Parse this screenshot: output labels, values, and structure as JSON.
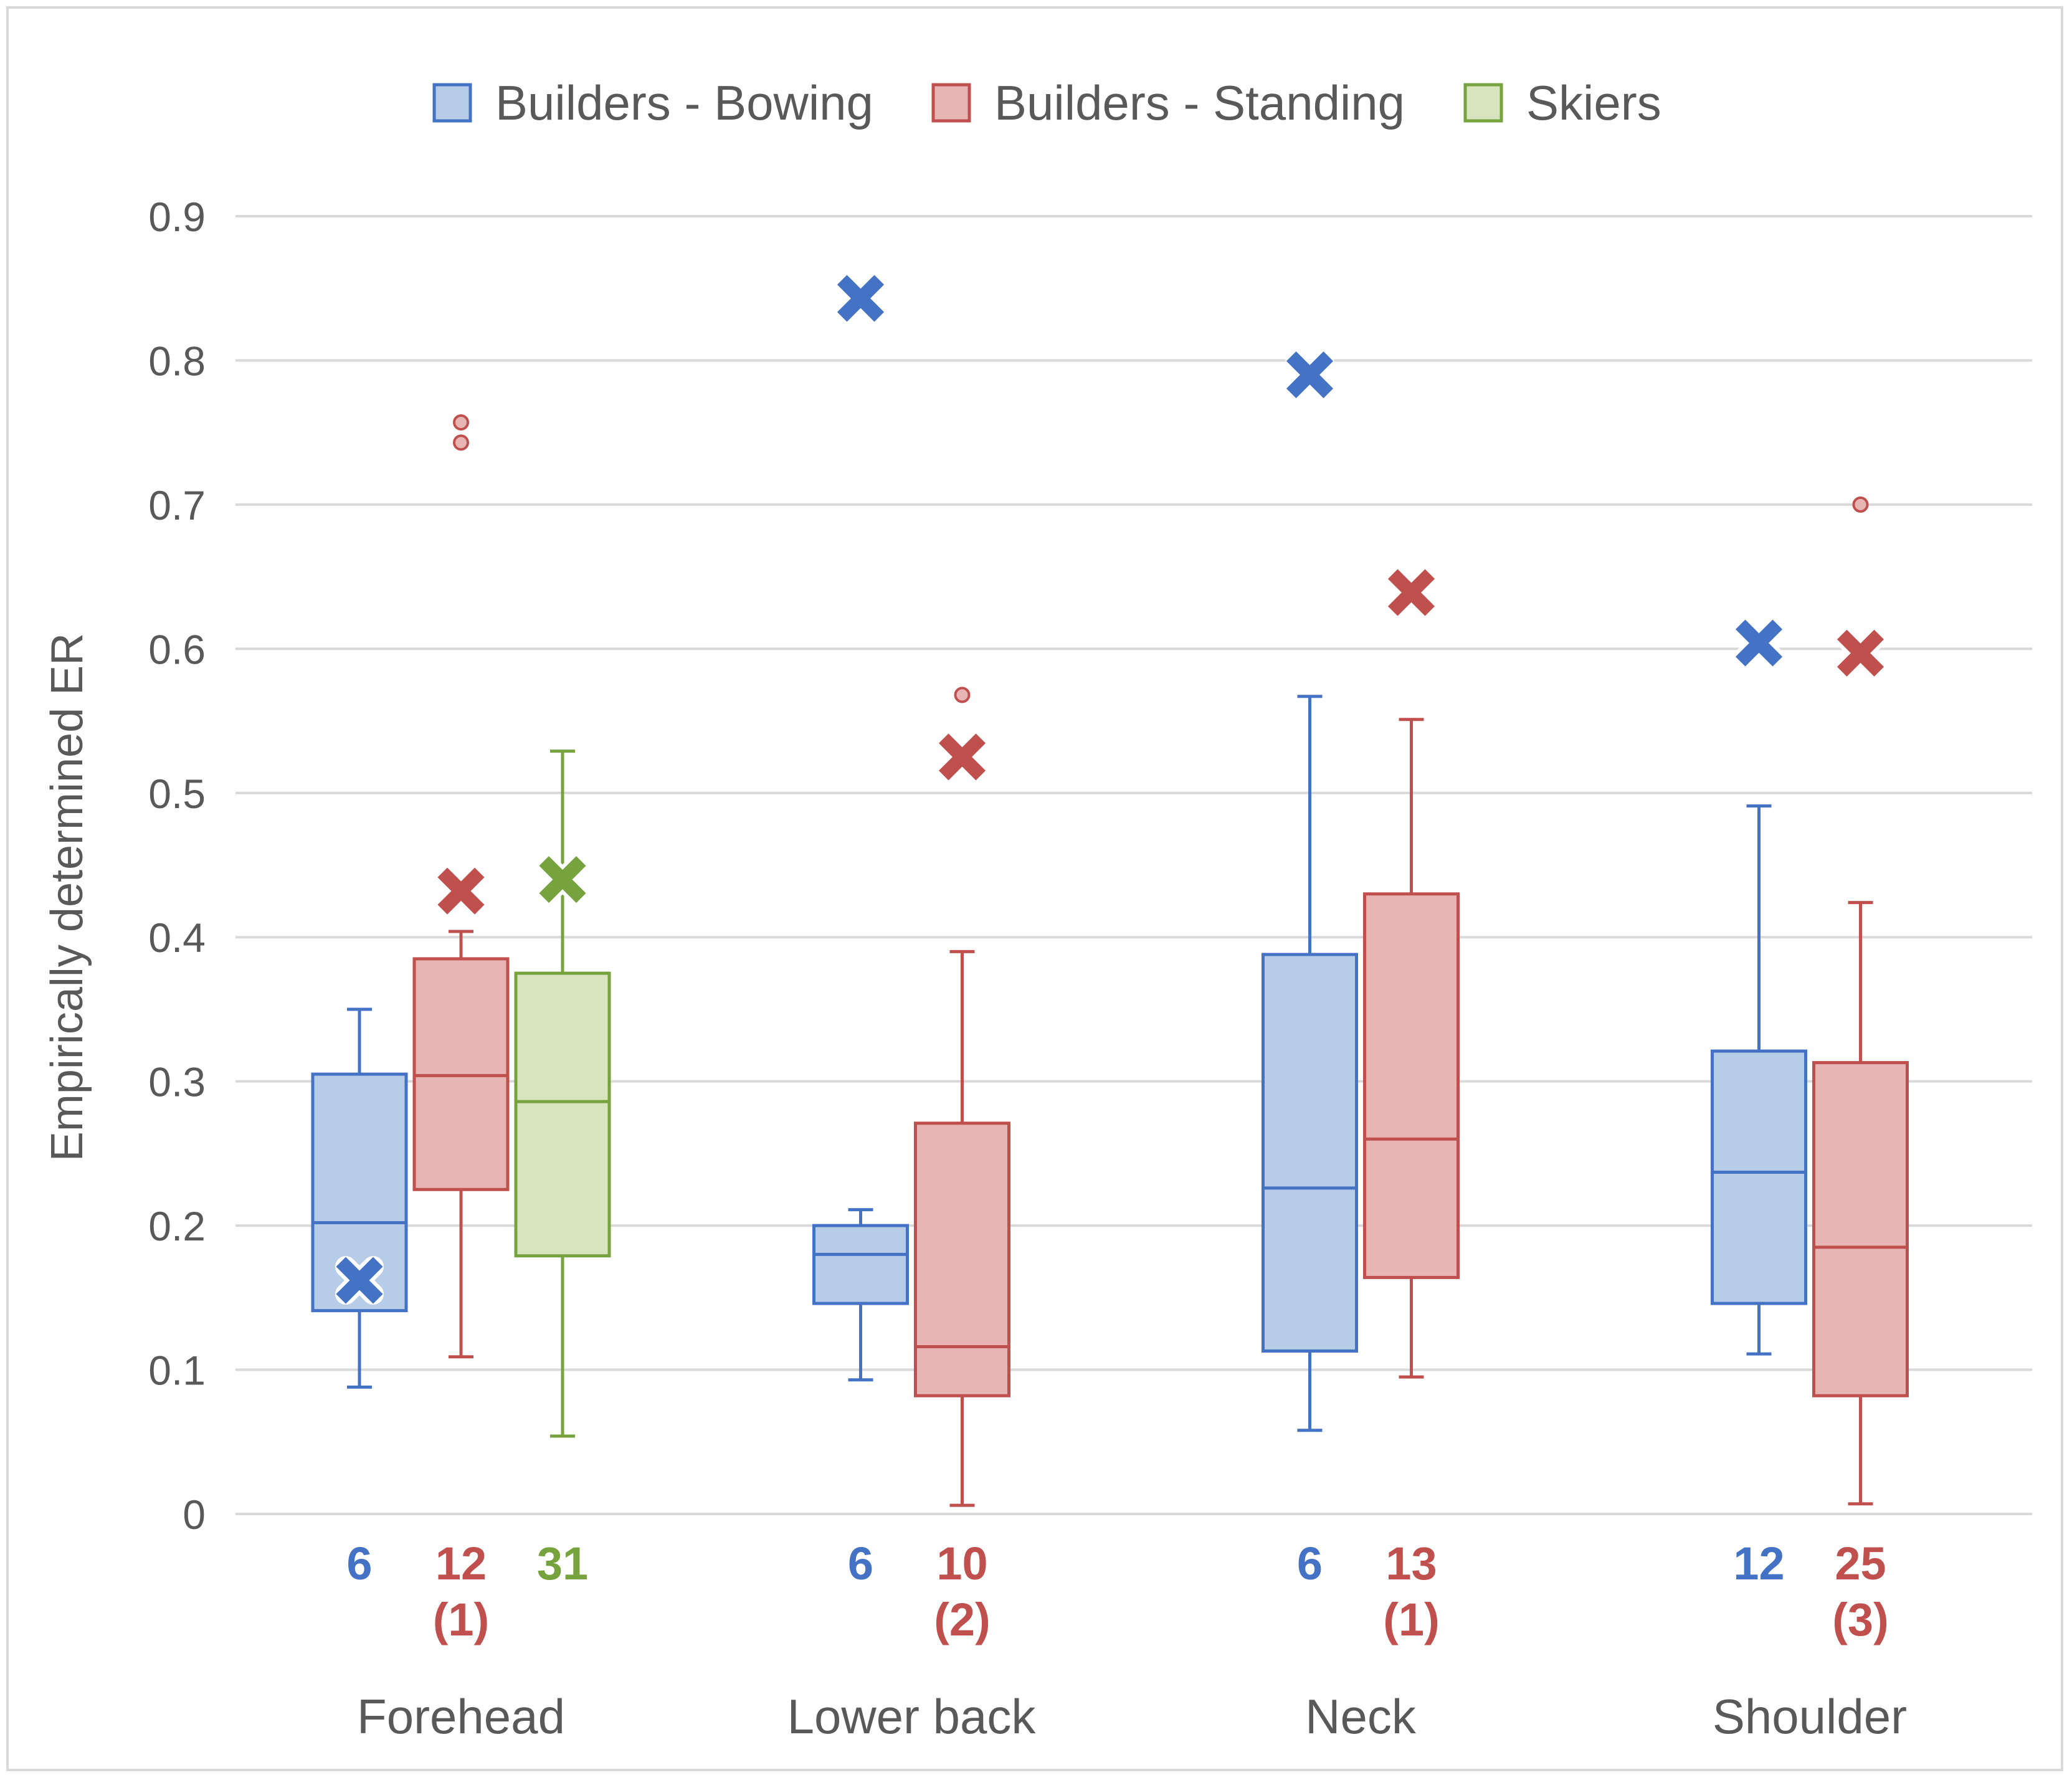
{
  "chart_data": {
    "type": "boxplot",
    "ylabel": "Empirically determined ER",
    "xlabel": "",
    "ylim": [
      0,
      0.9
    ],
    "yticks": [
      "0",
      "0.1",
      "0.2",
      "0.3",
      "0.4",
      "0.5",
      "0.6",
      "0.7",
      "0.8",
      "0.9"
    ],
    "grid": true,
    "legend_position": "top-center",
    "series": [
      {
        "name": "Builders - Bowing",
        "color": "#4472C4",
        "fill": "#B7CCE6"
      },
      {
        "name": "Builders - Standing",
        "color": "#C0504D",
        "fill": "#E8B5B5"
      },
      {
        "name": "Skiers",
        "color": "#77A33F",
        "fill": "#D7E4BD"
      }
    ],
    "categories": [
      {
        "name": "Forehead",
        "boxes": [
          {
            "series": "Builders - Bowing",
            "min": 0.088,
            "q1": 0.141,
            "median": 0.202,
            "q3": 0.305,
            "max": 0.35,
            "mean": 0.162,
            "outliers": [],
            "n": "6",
            "excluded": ""
          },
          {
            "series": "Builders - Standing",
            "min": 0.109,
            "q1": 0.225,
            "median": 0.304,
            "q3": 0.385,
            "max": 0.404,
            "mean": 0.432,
            "outliers": [
              0.757,
              0.743
            ],
            "n": "12",
            "excluded": "(1)"
          },
          {
            "series": "Skiers",
            "min": 0.054,
            "q1": 0.179,
            "median": 0.286,
            "q3": 0.375,
            "max": 0.529,
            "mean": 0.44,
            "outliers": [],
            "n": "31",
            "excluded": ""
          }
        ]
      },
      {
        "name": "Lower back",
        "boxes": [
          {
            "series": "Builders - Bowing",
            "min": 0.093,
            "q1": 0.146,
            "median": 0.18,
            "q3": 0.2,
            "max": 0.211,
            "mean": 0.843,
            "outliers": [],
            "n": "6",
            "excluded": ""
          },
          {
            "series": "Builders - Standing",
            "min": 0.006,
            "q1": 0.082,
            "median": 0.116,
            "q3": 0.271,
            "max": 0.39,
            "mean": 0.525,
            "outliers": [
              0.568
            ],
            "n": "10",
            "excluded": "(2)"
          }
        ]
      },
      {
        "name": "Neck",
        "boxes": [
          {
            "series": "Builders - Bowing",
            "min": 0.058,
            "q1": 0.113,
            "median": 0.226,
            "q3": 0.388,
            "max": 0.567,
            "mean": 0.79,
            "outliers": [],
            "n": "6",
            "excluded": ""
          },
          {
            "series": "Builders - Standing",
            "min": 0.095,
            "q1": 0.164,
            "median": 0.26,
            "q3": 0.43,
            "max": 0.551,
            "mean": 0.639,
            "outliers": [],
            "n": "13",
            "excluded": "(1)"
          }
        ]
      },
      {
        "name": "Shoulder",
        "boxes": [
          {
            "series": "Builders - Bowing",
            "min": 0.111,
            "q1": 0.146,
            "median": 0.237,
            "q3": 0.321,
            "max": 0.491,
            "mean": 0.604,
            "outliers": [],
            "n": "12",
            "excluded": ""
          },
          {
            "series": "Builders - Standing",
            "min": 0.007,
            "q1": 0.082,
            "median": 0.185,
            "q3": 0.313,
            "max": 0.424,
            "mean": 0.597,
            "outliers": [
              0.7
            ],
            "n": "25",
            "excluded": "(3)"
          }
        ]
      }
    ]
  }
}
